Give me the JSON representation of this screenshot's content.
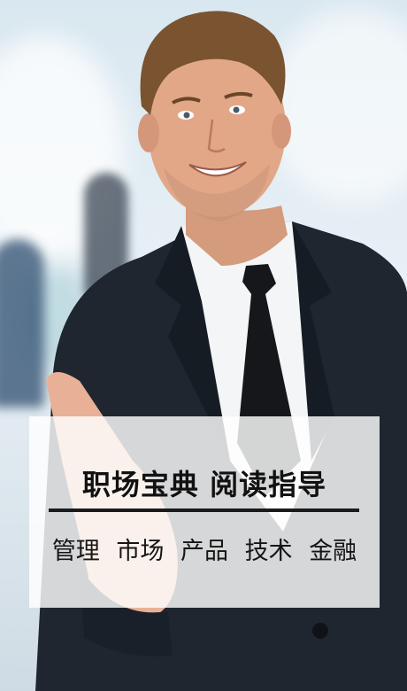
{
  "banner": {
    "headline": "职场宝典 阅读指导",
    "tags": [
      "管理",
      "市场",
      "产品",
      "技术",
      "金融"
    ]
  },
  "colors": {
    "headline": "#111111",
    "rule": "#1a1a1a",
    "panel": "#ffffff",
    "suit": "#1f2630",
    "shirt": "#f3f5f7",
    "tie": "#15171b",
    "skin": "#e2a787",
    "hair": "#7a5330"
  }
}
